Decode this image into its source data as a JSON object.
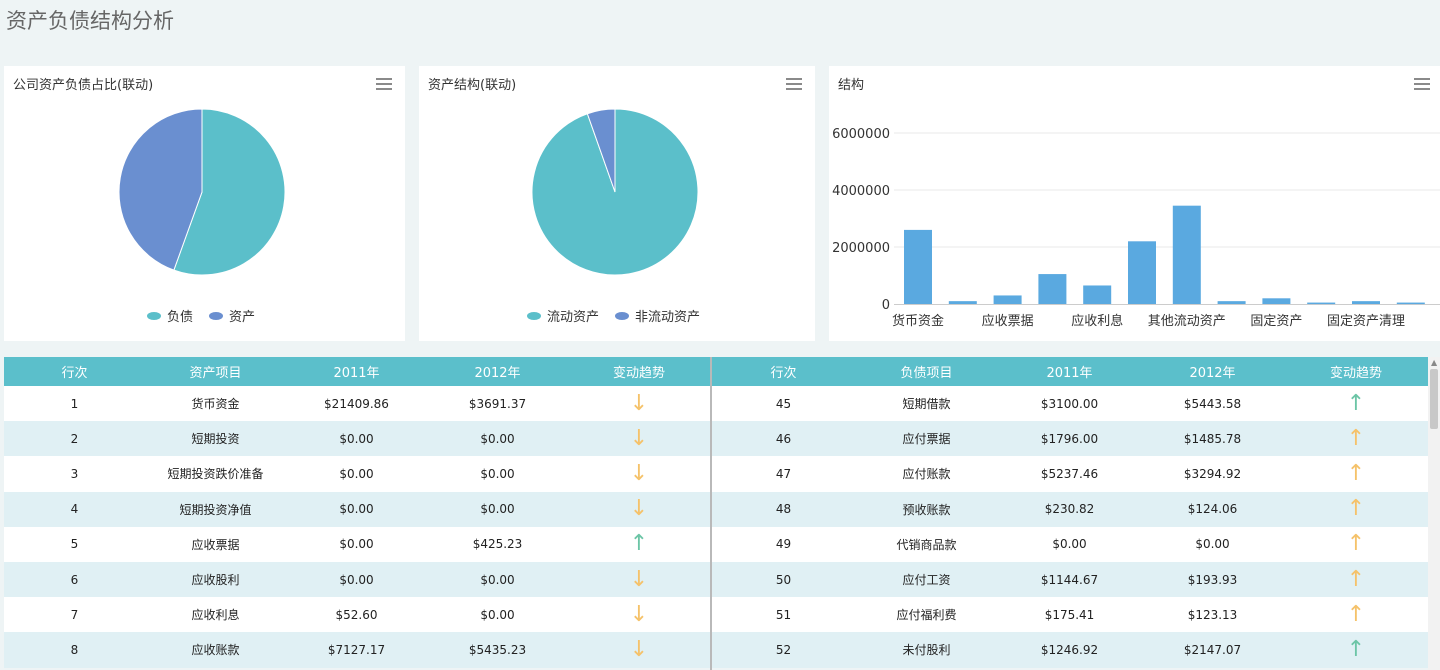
{
  "page": {
    "title": "资产负债结构分析"
  },
  "panels": {
    "p1": {
      "title": "公司资产负债占比(联动)"
    },
    "p2": {
      "title": "资产结构(联动)"
    },
    "p3": {
      "title": "结构"
    }
  },
  "colors": {
    "teal": "#5bbfca",
    "blue": "#6a8fd0",
    "bar": "#5aa9e0",
    "header": "#5bbfcb",
    "up_green": "#6cc5a6",
    "arrow_orange": "#f5c26a"
  },
  "pie1": {
    "legend": [
      {
        "label": "负债",
        "color": "#5bbfca"
      },
      {
        "label": "资产",
        "color": "#6a8fd0"
      }
    ],
    "slices": [
      {
        "name": "负债",
        "fraction": 0.555,
        "color": "#5bbfca"
      },
      {
        "name": "资产",
        "fraction": 0.445,
        "color": "#6a8fd0"
      }
    ]
  },
  "pie2": {
    "legend": [
      {
        "label": "流动资产",
        "color": "#5bbfca"
      },
      {
        "label": "非流动资产",
        "color": "#6a8fd0"
      }
    ],
    "slices": [
      {
        "name": "流动资产",
        "fraction": 0.946,
        "color": "#5bbfca"
      },
      {
        "name": "非流动资产",
        "fraction": 0.054,
        "color": "#6a8fd0"
      }
    ]
  },
  "chart_data": {
    "type": "bar",
    "title": "结构",
    "ylim": [
      0,
      6000000
    ],
    "yticks": [
      "0",
      "2000000",
      "4000000",
      "6000000"
    ],
    "categories": [
      "货币资金",
      "",
      "应收票据",
      "",
      "应收利息",
      "",
      "其他流动资产",
      "",
      "固定资产",
      "",
      "固定资产清理",
      ""
    ],
    "values": [
      2600000,
      100000,
      300000,
      1050000,
      650000,
      2200000,
      3450000,
      100000,
      200000,
      50000,
      100000,
      50000
    ],
    "grid": true
  },
  "asset_table": {
    "headers": [
      "行次",
      "资产项目",
      "2011年",
      "2012年",
      "变动趋势"
    ],
    "rows": [
      {
        "line": "1",
        "item": "货币资金",
        "y2011": "$21409.86",
        "y2012": "$3691.37",
        "trend": "↓"
      },
      {
        "line": "2",
        "item": "短期投资",
        "y2011": "$0.00",
        "y2012": "$0.00",
        "trend": "↓"
      },
      {
        "line": "3",
        "item": "短期投资跌价准备",
        "y2011": "$0.00",
        "y2012": "$0.00",
        "trend": "↓"
      },
      {
        "line": "4",
        "item": "短期投资净值",
        "y2011": "$0.00",
        "y2012": "$0.00",
        "trend": "↓"
      },
      {
        "line": "5",
        "item": "应收票据",
        "y2011": "$0.00",
        "y2012": "$425.23",
        "trend": "↑"
      },
      {
        "line": "6",
        "item": "应收股利",
        "y2011": "$0.00",
        "y2012": "$0.00",
        "trend": "↓"
      },
      {
        "line": "7",
        "item": "应收利息",
        "y2011": "$52.60",
        "y2012": "$0.00",
        "trend": "↓"
      },
      {
        "line": "8",
        "item": "应收账款",
        "y2011": "$7127.17",
        "y2012": "$5435.23",
        "trend": "↓"
      }
    ]
  },
  "liability_table": {
    "headers": [
      "行次",
      "负债项目",
      "2011年",
      "2012年",
      "变动趋势"
    ],
    "rows": [
      {
        "line": "45",
        "item": "短期借款",
        "y2011": "$3100.00",
        "y2012": "$5443.58",
        "trend": "↑",
        "green": true
      },
      {
        "line": "46",
        "item": "应付票据",
        "y2011": "$1796.00",
        "y2012": "$1485.78",
        "trend": "↑",
        "green": false
      },
      {
        "line": "47",
        "item": "应付账款",
        "y2011": "$5237.46",
        "y2012": "$3294.92",
        "trend": "↑",
        "green": false
      },
      {
        "line": "48",
        "item": "预收账款",
        "y2011": "$230.82",
        "y2012": "$124.06",
        "trend": "↑",
        "green": false
      },
      {
        "line": "49",
        "item": "代销商品款",
        "y2011": "$0.00",
        "y2012": "$0.00",
        "trend": "↑",
        "green": false
      },
      {
        "line": "50",
        "item": "应付工资",
        "y2011": "$1144.67",
        "y2012": "$193.93",
        "trend": "↑",
        "green": false
      },
      {
        "line": "51",
        "item": "应付福利费",
        "y2011": "$175.41",
        "y2012": "$123.13",
        "trend": "↑",
        "green": false
      },
      {
        "line": "52",
        "item": "未付股利",
        "y2011": "$1246.92",
        "y2012": "$2147.07",
        "trend": "↑",
        "green": true
      }
    ]
  }
}
